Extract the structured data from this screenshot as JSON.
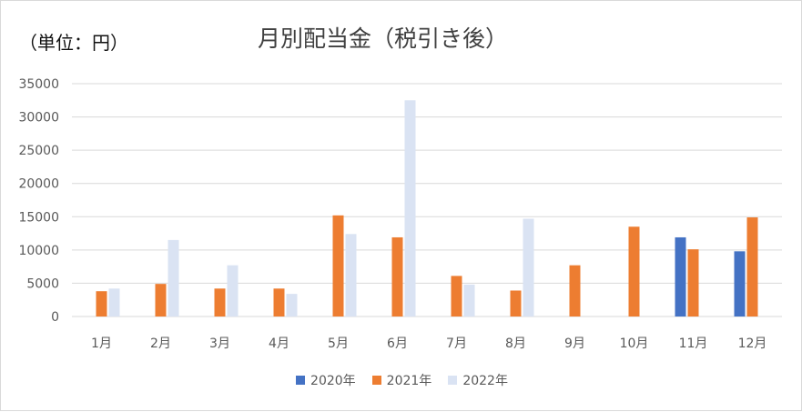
{
  "unit_label": "（単位：円）",
  "chart_data": {
    "type": "bar",
    "title": "月別配当金（税引き後）",
    "categories": [
      "1月",
      "2月",
      "3月",
      "4月",
      "5月",
      "6月",
      "7月",
      "8月",
      "9月",
      "10月",
      "11月",
      "12月"
    ],
    "series": [
      {
        "name": "2020年",
        "color": "#4472C4",
        "values": [
          0,
          0,
          0,
          0,
          0,
          0,
          0,
          0,
          0,
          0,
          11900,
          9800
        ]
      },
      {
        "name": "2021年",
        "color": "#ED7D31",
        "values": [
          3800,
          4900,
          4200,
          4200,
          15200,
          11900,
          6100,
          3900,
          7700,
          13500,
          10100,
          14900
        ]
      },
      {
        "name": "2022年",
        "color": "#DAE3F3",
        "values": [
          4200,
          11500,
          7700,
          3400,
          12400,
          32500,
          4800,
          14700,
          0,
          0,
          0,
          0
        ]
      }
    ],
    "ylim": [
      0,
      35000
    ],
    "yticks": [
      0,
      5000,
      10000,
      15000,
      20000,
      25000,
      30000,
      35000
    ],
    "ytick_labels": [
      "0",
      "5000",
      "10000",
      "15000",
      "20000",
      "25000",
      "30000",
      "35000"
    ],
    "grid": true,
    "legend": "bottom"
  }
}
